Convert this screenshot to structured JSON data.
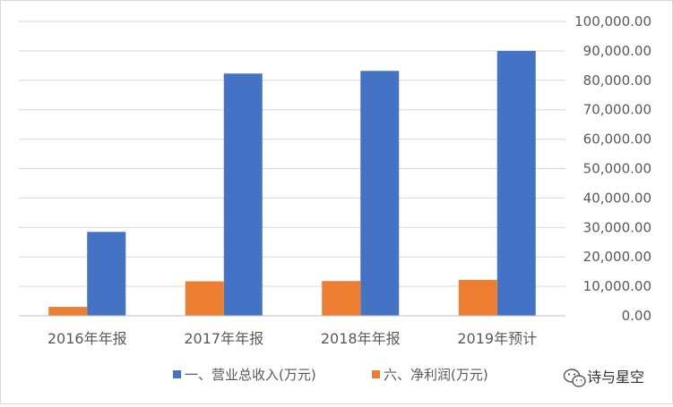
{
  "chart_data": {
    "type": "bar",
    "categories": [
      "2016年年报",
      "2017年年报",
      "2018年年报",
      "2019年预计"
    ],
    "series": [
      {
        "name": "一、营业总收入(万元)",
        "color": "#4472C4",
        "values": [
          28500,
          82300,
          83200,
          90000
        ]
      },
      {
        "name": "六、净利润(万元)",
        "color": "#ED7D31",
        "values": [
          3000,
          11700,
          11800,
          12200
        ]
      }
    ],
    "yaxis": {
      "position": "right",
      "min": 0,
      "max": 100000,
      "step": 10000,
      "tick_labels": [
        "0.00",
        "10,000.00",
        "20,000.00",
        "30,000.00",
        "40,000.00",
        "50,000.00",
        "60,000.00",
        "70,000.00",
        "80,000.00",
        "90,000.00",
        "100,000.00"
      ]
    },
    "grid": true,
    "legend": "bottom"
  },
  "watermark": {
    "text": "诗与星空",
    "icon": "wechat-icon"
  }
}
